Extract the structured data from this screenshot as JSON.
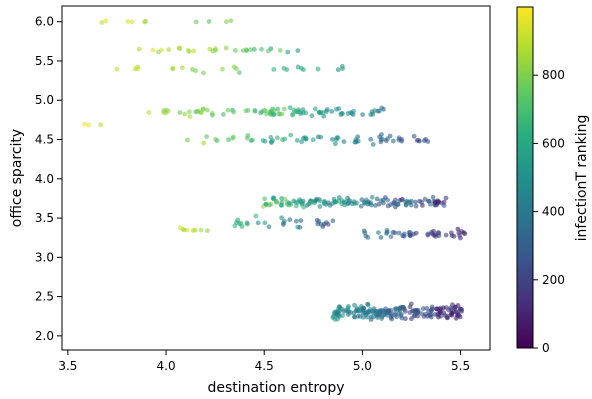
{
  "chart_data": {
    "type": "scatter",
    "xlabel": "destination entropy",
    "ylabel": "office sparcity",
    "colorbar_label": "infectionT ranking",
    "xlim": [
      3.47,
      5.65
    ],
    "ylim": [
      1.82,
      6.2
    ],
    "xticks": [
      "3.5",
      "4.0",
      "4.5",
      "5.0",
      "5.5"
    ],
    "xtick_values": [
      3.5,
      4.0,
      4.5,
      5.0,
      5.5
    ],
    "yticks": [
      "2.0",
      "2.5",
      "3.0",
      "3.5",
      "4.0",
      "4.5",
      "5.0",
      "5.5",
      "6.0"
    ],
    "ytick_values": [
      2.0,
      2.5,
      3.0,
      3.5,
      4.0,
      4.5,
      5.0,
      5.5,
      6.0
    ],
    "colorbar_ticks": [
      "0",
      "200",
      "400",
      "600",
      "800"
    ],
    "colorbar_tick_values": [
      0,
      200,
      400,
      600,
      800
    ],
    "color_range": [
      0,
      1000
    ],
    "colormap": "viridis",
    "marker_alpha": 0.6,
    "grid": false,
    "clusters": [
      {
        "y": 6.0,
        "x_range": [
          3.6,
          4.35
        ],
        "rank_range": [
          700,
          1000
        ],
        "spread": 0.03,
        "count": 10
      },
      {
        "y": 5.65,
        "x_range": [
          3.75,
          4.7
        ],
        "rank_range": [
          650,
          1000
        ],
        "spread": 0.05,
        "count": 22
      },
      {
        "y": 5.65,
        "x_range": [
          4.4,
          4.7
        ],
        "rank_range": [
          450,
          700
        ],
        "spread": 0.05,
        "count": 5
      },
      {
        "y": 5.4,
        "x_range": [
          3.75,
          4.4
        ],
        "rank_range": [
          700,
          1000
        ],
        "spread": 0.06,
        "count": 14
      },
      {
        "y": 5.4,
        "x_range": [
          4.55,
          4.95
        ],
        "rank_range": [
          450,
          750
        ],
        "spread": 0.06,
        "count": 10
      },
      {
        "y": 4.85,
        "x_range": [
          3.85,
          4.55
        ],
        "rank_range": [
          550,
          1000
        ],
        "spread": 0.07,
        "count": 35
      },
      {
        "y": 4.85,
        "x_range": [
          4.5,
          5.1
        ],
        "rank_range": [
          250,
          850
        ],
        "spread": 0.07,
        "count": 55
      },
      {
        "y": 4.7,
        "x_range": [
          3.55,
          3.75
        ],
        "rank_range": [
          800,
          1000
        ],
        "spread": 0.02,
        "count": 3
      },
      {
        "y": 4.5,
        "x_range": [
          4.1,
          4.7
        ],
        "rank_range": [
          450,
          950
        ],
        "spread": 0.08,
        "count": 25
      },
      {
        "y": 4.5,
        "x_range": [
          4.7,
          5.35
        ],
        "rank_range": [
          150,
          650
        ],
        "spread": 0.08,
        "count": 40
      },
      {
        "y": 3.7,
        "x_range": [
          4.5,
          5.45
        ],
        "rank_range": [
          0,
          850
        ],
        "spread": 0.08,
        "count": 140
      },
      {
        "y": 3.35,
        "x_range": [
          4.05,
          4.35
        ],
        "rank_range": [
          600,
          1000
        ],
        "spread": 0.07,
        "count": 8
      },
      {
        "y": 3.45,
        "x_range": [
          4.35,
          4.85
        ],
        "rank_range": [
          150,
          800
        ],
        "spread": 0.1,
        "count": 30
      },
      {
        "y": 3.3,
        "x_range": [
          5.0,
          5.55
        ],
        "rank_range": [
          0,
          500
        ],
        "spread": 0.07,
        "count": 45
      },
      {
        "y": 2.3,
        "x_range": [
          4.85,
          5.5
        ],
        "rank_range": [
          0,
          600
        ],
        "spread": 0.13,
        "count": 200
      }
    ]
  }
}
